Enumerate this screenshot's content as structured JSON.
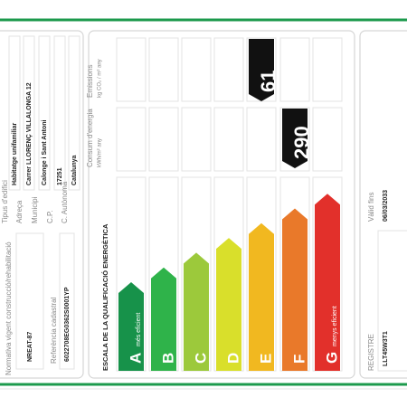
{
  "building": {
    "fields": [
      {
        "label": "Tipus d'edifici",
        "value": "Habitatge unifamiliar"
      },
      {
        "label": "Adreça",
        "value": "Carrer LLORENÇ VILLALONGA 12"
      },
      {
        "label": "Municipi",
        "value": "Calonge i Sant Antoni"
      },
      {
        "label": "C.P.",
        "value": "17251"
      },
      {
        "label": "C. Autònoma",
        "value": "Catalunya"
      }
    ],
    "normativa": {
      "label": "Normativa vigent construcció/rehabilitació",
      "value": "NREAT-87"
    },
    "cadastral": {
      "label": "Referència cadastral",
      "value": "6022708EG0362S0001YP"
    }
  },
  "scale": {
    "title": "ESCALA DE LA QUALIFICACIÓ ENERGÈTICA",
    "emissions_label": "Emissions",
    "emissions_unit": "kg CO₂ / m² any",
    "consumption_label": "Consum d'energia",
    "consumption_unit": "kWh/m² any",
    "classes": [
      {
        "letter": "A",
        "color": "#17924a"
      },
      {
        "letter": "B",
        "color": "#2fb34a"
      },
      {
        "letter": "C",
        "color": "#9cc93b"
      },
      {
        "letter": "D",
        "color": "#d9df2b"
      },
      {
        "letter": "E",
        "color": "#f1b820"
      },
      {
        "letter": "F",
        "color": "#e9792a"
      },
      {
        "letter": "G",
        "color": "#e2302b"
      }
    ],
    "best_label": "més eficient",
    "worst_label": "menys eficient",
    "emissions_value": "61",
    "consumption_value": "290"
  },
  "validity": {
    "label": "Vàlid fins",
    "value": "06/03/2033"
  },
  "registry": {
    "label": "REGISTRE",
    "value": "LLT45W3T1"
  }
}
